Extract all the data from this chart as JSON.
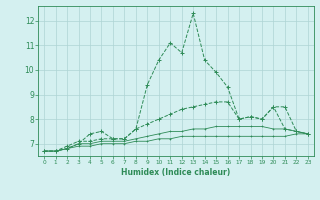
{
  "xlabel": "Humidex (Indice chaleur)",
  "x": [
    0,
    1,
    2,
    3,
    4,
    5,
    6,
    7,
    8,
    9,
    10,
    11,
    12,
    13,
    14,
    15,
    16,
    17,
    18,
    19,
    20,
    21,
    22,
    23
  ],
  "series1": [
    6.7,
    6.7,
    6.8,
    7.0,
    7.4,
    7.5,
    7.2,
    7.2,
    7.6,
    9.4,
    10.4,
    11.1,
    10.7,
    12.3,
    10.4,
    9.9,
    9.3,
    8.0,
    8.1,
    8.0,
    8.5,
    8.5,
    7.5,
    7.4
  ],
  "series2": [
    6.7,
    6.7,
    6.9,
    7.1,
    7.1,
    7.2,
    7.2,
    7.2,
    7.6,
    7.8,
    8.0,
    8.2,
    8.4,
    8.5,
    8.6,
    8.7,
    8.7,
    8.0,
    8.1,
    8.0,
    8.5,
    7.6,
    7.5,
    7.4
  ],
  "series3": [
    6.7,
    6.7,
    6.8,
    7.0,
    7.0,
    7.1,
    7.1,
    7.1,
    7.2,
    7.3,
    7.4,
    7.5,
    7.5,
    7.6,
    7.6,
    7.7,
    7.7,
    7.7,
    7.7,
    7.7,
    7.6,
    7.6,
    7.5,
    7.4
  ],
  "series4": [
    6.7,
    6.7,
    6.8,
    6.9,
    6.9,
    7.0,
    7.0,
    7.0,
    7.1,
    7.1,
    7.2,
    7.2,
    7.3,
    7.3,
    7.3,
    7.3,
    7.3,
    7.3,
    7.3,
    7.3,
    7.3,
    7.3,
    7.4,
    7.4
  ],
  "line_color": "#2e8b57",
  "bg_color": "#d4f0f0",
  "grid_color": "#aed4d4",
  "ylim": [
    6.5,
    12.6
  ],
  "yticks": [
    7,
    8,
    9,
    10,
    11,
    12
  ],
  "xlim": [
    -0.5,
    23.5
  ]
}
